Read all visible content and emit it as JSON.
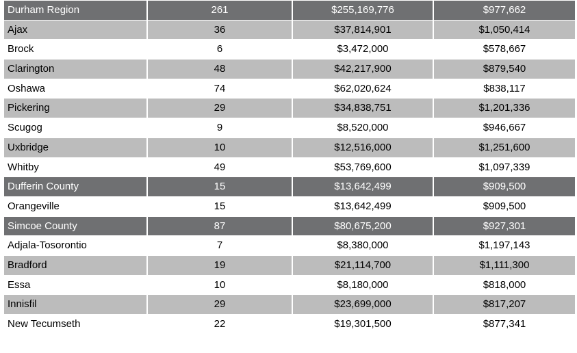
{
  "table": {
    "rows": [
      {
        "style": "header",
        "name": "Durham Region",
        "count": "261",
        "total": "$255,169,776",
        "average": "$977,662"
      },
      {
        "style": "shaded",
        "name": "Ajax",
        "count": "36",
        "total": "$37,814,901",
        "average": "$1,050,414"
      },
      {
        "style": "plain",
        "name": "Brock",
        "count": "6",
        "total": "$3,472,000",
        "average": "$578,667"
      },
      {
        "style": "shaded",
        "name": "Clarington",
        "count": "48",
        "total": "$42,217,900",
        "average": "$879,540"
      },
      {
        "style": "plain",
        "name": "Oshawa",
        "count": "74",
        "total": "$62,020,624",
        "average": "$838,117"
      },
      {
        "style": "shaded",
        "name": "Pickering",
        "count": "29",
        "total": "$34,838,751",
        "average": "$1,201,336"
      },
      {
        "style": "plain",
        "name": "Scugog",
        "count": "9",
        "total": "$8,520,000",
        "average": "$946,667"
      },
      {
        "style": "shaded",
        "name": "Uxbridge",
        "count": "10",
        "total": "$12,516,000",
        "average": "$1,251,600"
      },
      {
        "style": "plain",
        "name": "Whitby",
        "count": "49",
        "total": "$53,769,600",
        "average": "$1,097,339"
      },
      {
        "style": "header",
        "name": "Dufferin County",
        "count": "15",
        "total": "$13,642,499",
        "average": "$909,500"
      },
      {
        "style": "plain",
        "name": "Orangeville",
        "count": "15",
        "total": "$13,642,499",
        "average": "$909,500"
      },
      {
        "style": "header",
        "name": "Simcoe County",
        "count": "87",
        "total": "$80,675,200",
        "average": "$927,301"
      },
      {
        "style": "plain",
        "name": "Adjala-Tosorontio",
        "count": "7",
        "total": "$8,380,000",
        "average": "$1,197,143"
      },
      {
        "style": "shaded",
        "name": "Bradford",
        "count": "19",
        "total": "$21,114,700",
        "average": "$1,111,300"
      },
      {
        "style": "plain",
        "name": "Essa",
        "count": "10",
        "total": "$8,180,000",
        "average": "$818,000"
      },
      {
        "style": "shaded",
        "name": "Innisfil",
        "count": "29",
        "total": "$23,699,000",
        "average": "$817,207"
      },
      {
        "style": "plain",
        "name": "New Tecumseth",
        "count": "22",
        "total": "$19,301,500",
        "average": "$877,341"
      }
    ]
  },
  "colors": {
    "header_bg": "#6f7072",
    "shaded_bg": "#bcbcbc",
    "plain_bg": "#ffffff"
  }
}
